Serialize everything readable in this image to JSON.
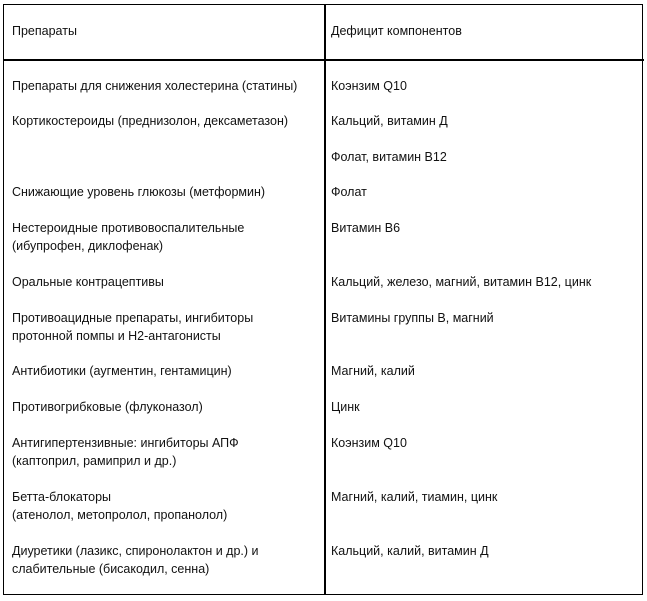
{
  "table": {
    "headers": [
      "Препараты",
      "Дефицит компонентов"
    ],
    "rows": [
      {
        "drug": "Препараты для снижения холестерина (статины)",
        "deficit": "Коэнзим Q10"
      },
      {
        "drug": "Кортикостероиды (преднизолон, дексаметазон)",
        "deficit": " Кальций, витамин Д"
      },
      {
        "drug": "",
        "deficit": "Фолат, витамин В12"
      },
      {
        "drug": "Снижающие уровень глюкозы (метформин)",
        "deficit": "Фолат"
      },
      {
        "drug": "Нестероидные противовоспалительные\n(ибупрофен, диклофенак)",
        "deficit": "Витамин В6"
      },
      {
        "drug": "Оральные контрацептивы",
        "deficit": "Кальций, железо, магний, витамин В12,  цинк"
      },
      {
        "drug": "Противоацидные препараты, ингибиторы\nпротонной помпы и Н2-антагонисты",
        "deficit": "Витамины группы В, магний"
      },
      {
        "drug": "Антибиотики (аугментин, гентамицин)",
        "deficit": "Магний, калий"
      },
      {
        "drug": "Противогрибковые (флуконазол)",
        "deficit": "Цинк"
      },
      {
        "drug": "Антигипертензивные: ингибиторы АПФ\n(каптоприл, рамиприл и др.)",
        "deficit": "Коэнзим Q10"
      },
      {
        "drug": "Бетта-блокаторы\n(атенолол, метопролол, пропанолол)",
        "deficit": "Магний, калий, тиамин,  цинк"
      },
      {
        "drug": "Диуретики (лазикс, спиронолактон и др.) и\nслабительные (бисакодил, сенна)",
        "deficit": "Кальций, калий, витамин Д"
      }
    ]
  }
}
